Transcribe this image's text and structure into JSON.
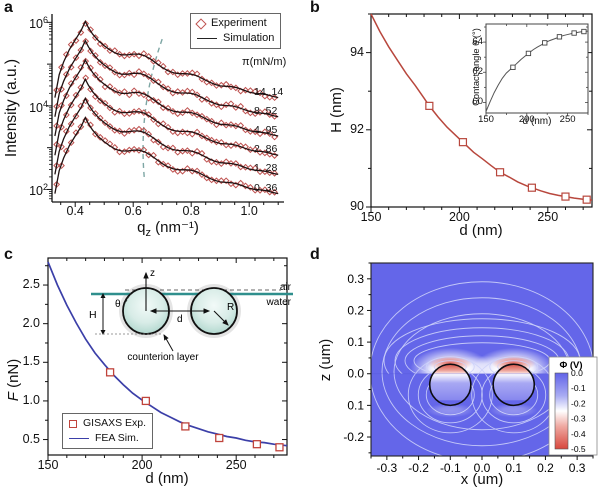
{
  "panels": {
    "a": {
      "label": "a"
    },
    "b": {
      "label": "b"
    },
    "c": {
      "label": "c"
    },
    "d": {
      "label": "d"
    }
  },
  "colors": {
    "experiment_red": "#bf5250",
    "sim_black": "#201212",
    "curve_red": "#b8473d",
    "fea_blue": "#3b3fa8",
    "guide_teal": "#7da6a4",
    "interface_teal": "#2f8f8d",
    "map_blue": "#6466e9",
    "map_red": "#d8473d",
    "contour_line": "#cdd1f9"
  },
  "chart_data": [
    {
      "id": "a",
      "type": "line",
      "log_y": true,
      "ylabel": "Intensity (a.u.)",
      "xlabel_parts": {
        "base": "q",
        "sub": "z",
        "rest": " (nm⁻¹)"
      },
      "xlim": [
        0.32,
        1.12
      ],
      "ylim_exponents": [
        1.7,
        6.2
      ],
      "xtick_labels": [
        "0.4",
        "0.6",
        "0.8",
        "1.0"
      ],
      "ytick_exponents": [
        2,
        4,
        6
      ],
      "legend": [
        {
          "label": "Experiment",
          "marker": "diamond"
        },
        {
          "label": "Simulation",
          "marker": "line"
        }
      ],
      "pressure_label": "π(mN/m)",
      "series": [
        {
          "pi": "14. 14",
          "offset": 2.3
        },
        {
          "pi": "8. 52",
          "offset": 1.84
        },
        {
          "pi": "4. 95",
          "offset": 1.38
        },
        {
          "pi": "2. 86",
          "offset": 0.92
        },
        {
          "pi": "1. 28",
          "offset": 0.46
        },
        {
          "pi": "0. 36",
          "offset": 0.0
        }
      ],
      "base_curve_logI": [
        [
          0.33,
          1.9
        ],
        [
          0.345,
          2.45
        ],
        [
          0.36,
          2.75
        ],
        [
          0.38,
          3.05
        ],
        [
          0.4,
          3.28
        ],
        [
          0.42,
          3.5
        ],
        [
          0.435,
          3.72
        ],
        [
          0.445,
          3.58
        ],
        [
          0.46,
          3.42
        ],
        [
          0.48,
          3.26
        ],
        [
          0.5,
          3.14
        ],
        [
          0.52,
          3.04
        ],
        [
          0.54,
          2.96
        ],
        [
          0.56,
          2.92
        ],
        [
          0.58,
          2.92
        ],
        [
          0.6,
          2.94
        ],
        [
          0.62,
          2.94
        ],
        [
          0.64,
          2.9
        ],
        [
          0.66,
          2.82
        ],
        [
          0.68,
          2.72
        ],
        [
          0.7,
          2.62
        ],
        [
          0.72,
          2.54
        ],
        [
          0.74,
          2.49
        ],
        [
          0.76,
          2.47
        ],
        [
          0.78,
          2.47
        ],
        [
          0.8,
          2.46
        ],
        [
          0.82,
          2.42
        ],
        [
          0.84,
          2.35
        ],
        [
          0.86,
          2.28
        ],
        [
          0.88,
          2.22
        ],
        [
          0.9,
          2.18
        ],
        [
          0.92,
          2.17
        ],
        [
          0.94,
          2.16
        ],
        [
          0.96,
          2.13
        ],
        [
          0.98,
          2.08
        ],
        [
          1.0,
          2.03
        ],
        [
          1.02,
          2.0
        ],
        [
          1.04,
          1.99
        ],
        [
          1.06,
          1.97
        ],
        [
          1.08,
          1.93
        ],
        [
          1.1,
          1.9
        ]
      ],
      "guide_line": {
        "from": [
          0.638,
          2.3
        ],
        "to": [
          0.7,
          5.6
        ]
      }
    },
    {
      "id": "b",
      "type": "line",
      "xlabel": "d (nm)",
      "ylabel": "H (nm)",
      "xlim": [
        150,
        275
      ],
      "ylim": [
        90,
        95
      ],
      "xtick_labels": [
        "150",
        "200",
        "250"
      ],
      "ytick_labels": [
        "90",
        "92",
        "94"
      ],
      "curve": [
        [
          150,
          95.0
        ],
        [
          155,
          94.55
        ],
        [
          160,
          94.15
        ],
        [
          165,
          93.8
        ],
        [
          170,
          93.45
        ],
        [
          175,
          93.15
        ],
        [
          180,
          92.82
        ],
        [
          183,
          92.62
        ],
        [
          188,
          92.33
        ],
        [
          193,
          92.07
        ],
        [
          198,
          91.85
        ],
        [
          202,
          91.68
        ],
        [
          208,
          91.42
        ],
        [
          213,
          91.25
        ],
        [
          218,
          91.07
        ],
        [
          223,
          90.9
        ],
        [
          228,
          90.78
        ],
        [
          233,
          90.65
        ],
        [
          238,
          90.55
        ],
        [
          241,
          90.5
        ],
        [
          246,
          90.42
        ],
        [
          251,
          90.35
        ],
        [
          256,
          90.3
        ],
        [
          260,
          90.27
        ],
        [
          265,
          90.23
        ],
        [
          270,
          90.2
        ],
        [
          275,
          90.18
        ]
      ],
      "markers": [
        [
          183,
          92.62
        ],
        [
          202,
          91.68
        ],
        [
          223,
          90.9
        ],
        [
          241,
          90.5
        ],
        [
          260,
          90.27
        ],
        [
          272,
          90.19
        ]
      ],
      "inset": {
        "xlabel": "d (nm)",
        "ylabel": "Contact angle θ (°)",
        "xlim": [
          150,
          275
        ],
        "ylim": [
          59.3,
          65.2
        ],
        "xtick_labels": [
          "150",
          "200",
          "250"
        ],
        "ytick_labels": [
          "60",
          "62",
          "64"
        ],
        "curve": [
          [
            150,
            59.4
          ],
          [
            155,
            60.05
          ],
          [
            160,
            60.65
          ],
          [
            165,
            61.15
          ],
          [
            170,
            61.6
          ],
          [
            175,
            61.95
          ],
          [
            180,
            62.2
          ],
          [
            183,
            62.33
          ],
          [
            188,
            62.6
          ],
          [
            193,
            62.85
          ],
          [
            198,
            63.08
          ],
          [
            202,
            63.25
          ],
          [
            208,
            63.5
          ],
          [
            213,
            63.67
          ],
          [
            218,
            63.82
          ],
          [
            222,
            63.95
          ],
          [
            228,
            64.1
          ],
          [
            233,
            64.2
          ],
          [
            238,
            64.3
          ],
          [
            241,
            64.37
          ],
          [
            246,
            64.45
          ],
          [
            251,
            64.52
          ],
          [
            256,
            64.58
          ],
          [
            260,
            64.62
          ],
          [
            265,
            64.67
          ],
          [
            270,
            64.7
          ],
          [
            275,
            64.73
          ]
        ],
        "markers": [
          [
            183,
            62.33
          ],
          [
            202,
            63.25
          ],
          [
            222,
            63.95
          ],
          [
            240,
            64.35
          ],
          [
            258,
            64.6
          ],
          [
            270,
            64.7
          ]
        ]
      }
    },
    {
      "id": "c",
      "type": "line",
      "xlabel": "d (nm)",
      "ylabel_italic": "F",
      "ylabel_rest": " (nN)",
      "xlim": [
        150,
        277
      ],
      "ylim": [
        0.3,
        2.85
      ],
      "xtick_labels": [
        "150",
        "200",
        "250"
      ],
      "ytick_labels": [
        "0.5",
        "1.0",
        "1.5",
        "2.0",
        "2.5"
      ],
      "legend": [
        {
          "label": "GISAXS Exp.",
          "marker": "square"
        },
        {
          "label": "FEA Sim.",
          "marker": "line"
        }
      ],
      "sim_curve": [
        [
          150,
          2.8
        ],
        [
          155,
          2.5
        ],
        [
          160,
          2.24
        ],
        [
          165,
          2.01
        ],
        [
          170,
          1.8
        ],
        [
          175,
          1.62
        ],
        [
          180,
          1.47
        ],
        [
          185,
          1.33
        ],
        [
          190,
          1.21
        ],
        [
          195,
          1.1
        ],
        [
          200,
          1.01
        ],
        [
          205,
          0.93
        ],
        [
          210,
          0.85
        ],
        [
          215,
          0.79
        ],
        [
          220,
          0.73
        ],
        [
          225,
          0.68
        ],
        [
          230,
          0.64
        ],
        [
          235,
          0.6
        ],
        [
          240,
          0.57
        ],
        [
          245,
          0.54
        ],
        [
          250,
          0.52
        ],
        [
          255,
          0.49
        ],
        [
          260,
          0.47
        ],
        [
          265,
          0.46
        ],
        [
          270,
          0.44
        ],
        [
          277,
          0.42
        ]
      ],
      "exp_markers": [
        [
          183,
          1.37
        ],
        [
          202,
          1.0
        ],
        [
          223,
          0.67
        ],
        [
          241,
          0.52
        ],
        [
          261,
          0.44
        ],
        [
          273,
          0.4
        ]
      ],
      "schematic": {
        "z": "z",
        "theta": "θ",
        "H": "H",
        "d": "d",
        "R": "R",
        "air": "air",
        "water": "water",
        "counterion": "counterion layer"
      }
    },
    {
      "id": "d",
      "type": "heatmap",
      "xlabel": "x (um)",
      "ylabel": "z (um)",
      "xtick_labels": [
        "-0.3",
        "-0.2",
        "-0.1",
        "0.0",
        "0.1",
        "0.2",
        "0.3"
      ],
      "ztick_labels": [
        "0.3",
        "0.2",
        "0.1",
        "0.0",
        "0.1",
        "-0.2"
      ],
      "colorbar": {
        "title": "Φ (V)",
        "tick_labels": [
          "0.0",
          "-0.1",
          "-0.2",
          "-0.3",
          "-0.4",
          "-0.5"
        ]
      },
      "circles": {
        "centers_x_um": [
          -0.1,
          0.1
        ],
        "center_z_um": -0.035,
        "radius_um": 0.065
      }
    }
  ]
}
